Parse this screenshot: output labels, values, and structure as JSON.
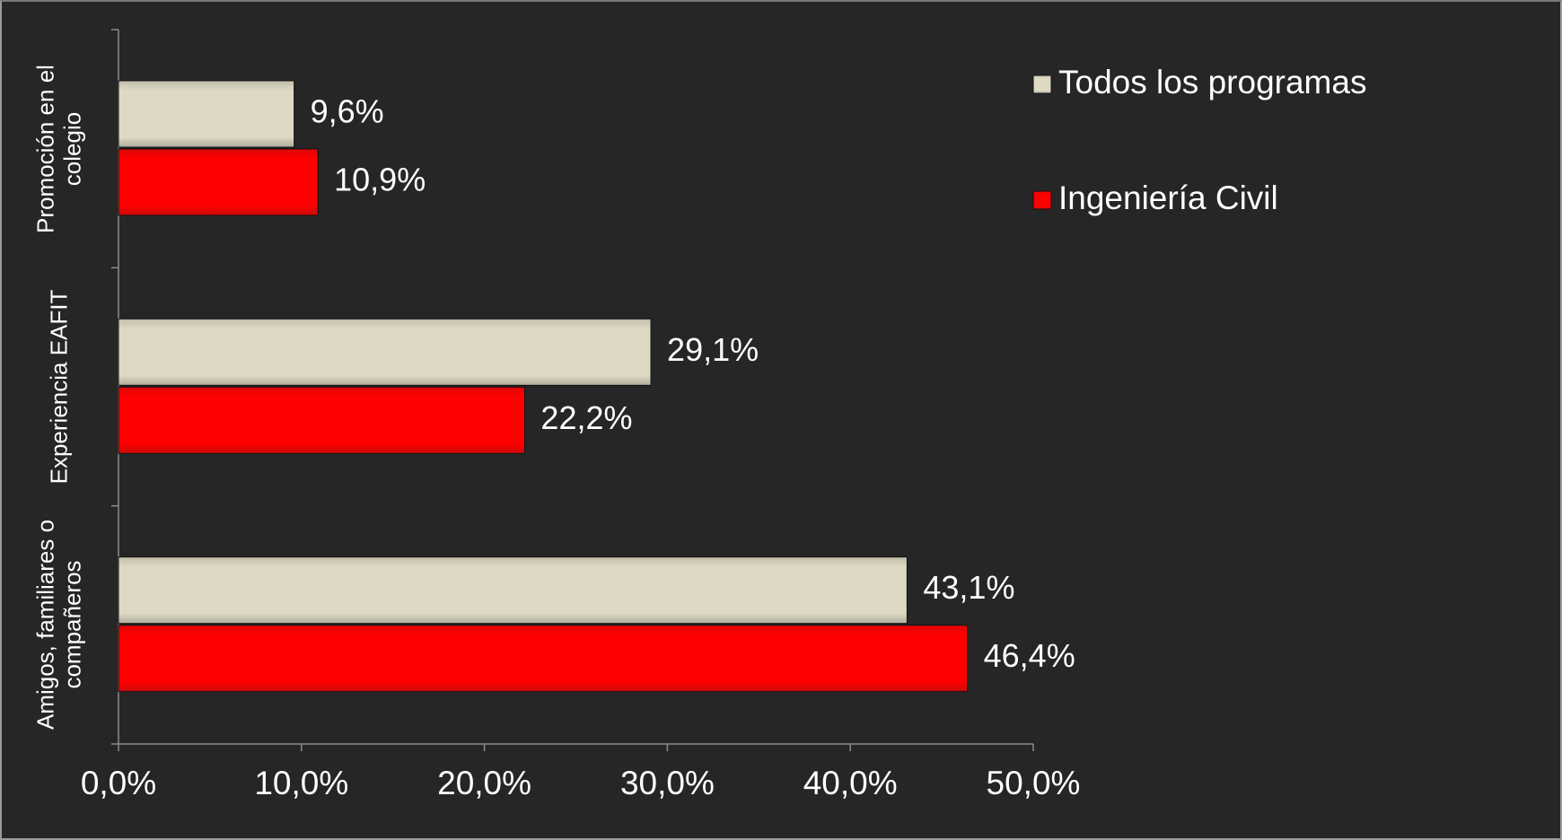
{
  "chart_data": {
    "type": "hbar",
    "categories": [
      "Promoción en el colegio",
      "Experiencia EAFIT",
      "Amigos, familiares o compañeros"
    ],
    "series": [
      {
        "name": "Todos los programas",
        "color": "#ddd9c4",
        "values": [
          9.6,
          29.1,
          43.1
        ],
        "value_labels": [
          "9,6%",
          "29,1%",
          "43,1%"
        ]
      },
      {
        "name": "Ingeniería Civil",
        "color": "#ff0000",
        "values": [
          10.9,
          22.2,
          46.4
        ],
        "value_labels": [
          "10,9%",
          "22,2%",
          "46,4%"
        ]
      }
    ],
    "xlim": [
      0,
      50
    ],
    "xticks": [
      {
        "value": 0,
        "label": "0,0%"
      },
      {
        "value": 10,
        "label": "10,0%"
      },
      {
        "value": 20,
        "label": "20,0%"
      },
      {
        "value": 30,
        "label": "30,0%"
      },
      {
        "value": 40,
        "label": "40,0%"
      },
      {
        "value": 50,
        "label": "50,0%"
      }
    ],
    "legend": "top-right"
  }
}
